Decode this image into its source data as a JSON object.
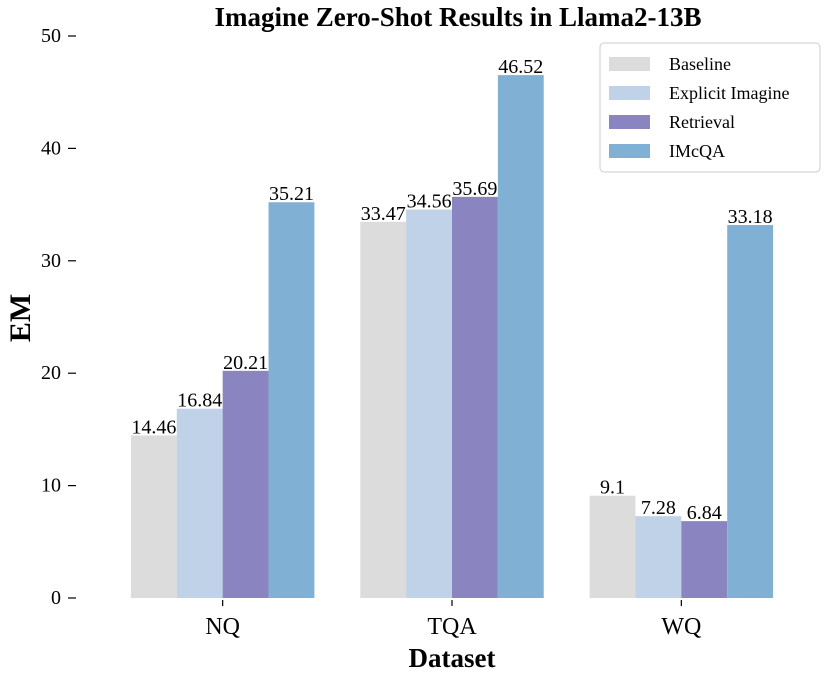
{
  "chart_data": {
    "type": "bar",
    "title": "Imagine Zero-Shot Results in Llama2-13B",
    "xlabel": "Dataset",
    "ylabel": "EM",
    "categories": [
      "NQ",
      "TQA",
      "WQ"
    ],
    "series": [
      {
        "name": "Baseline",
        "values": [
          14.46,
          33.47,
          9.1
        ],
        "value_labels": [
          "14.46",
          "33.47",
          "9.1"
        ],
        "color": "#dcdcdc"
      },
      {
        "name": "Explicit Imagine",
        "values": [
          16.84,
          34.56,
          7.28
        ],
        "value_labels": [
          "16.84",
          "34.56",
          "7.28"
        ],
        "color": "#c0d2e8"
      },
      {
        "name": "Retrieval",
        "values": [
          20.21,
          35.69,
          6.84
        ],
        "value_labels": [
          "20.21",
          "35.69",
          "6.84"
        ],
        "color": "#8a84c0"
      },
      {
        "name": "IMcQA",
        "values": [
          35.21,
          46.52,
          33.18
        ],
        "value_labels": [
          "35.21",
          "46.52",
          "33.18"
        ],
        "color": "#80b0d4"
      }
    ],
    "ylim": [
      0,
      50
    ],
    "yticks": [
      "0",
      "10",
      "20",
      "30",
      "40",
      "50"
    ],
    "grid": false,
    "legend_position": "top-right"
  }
}
